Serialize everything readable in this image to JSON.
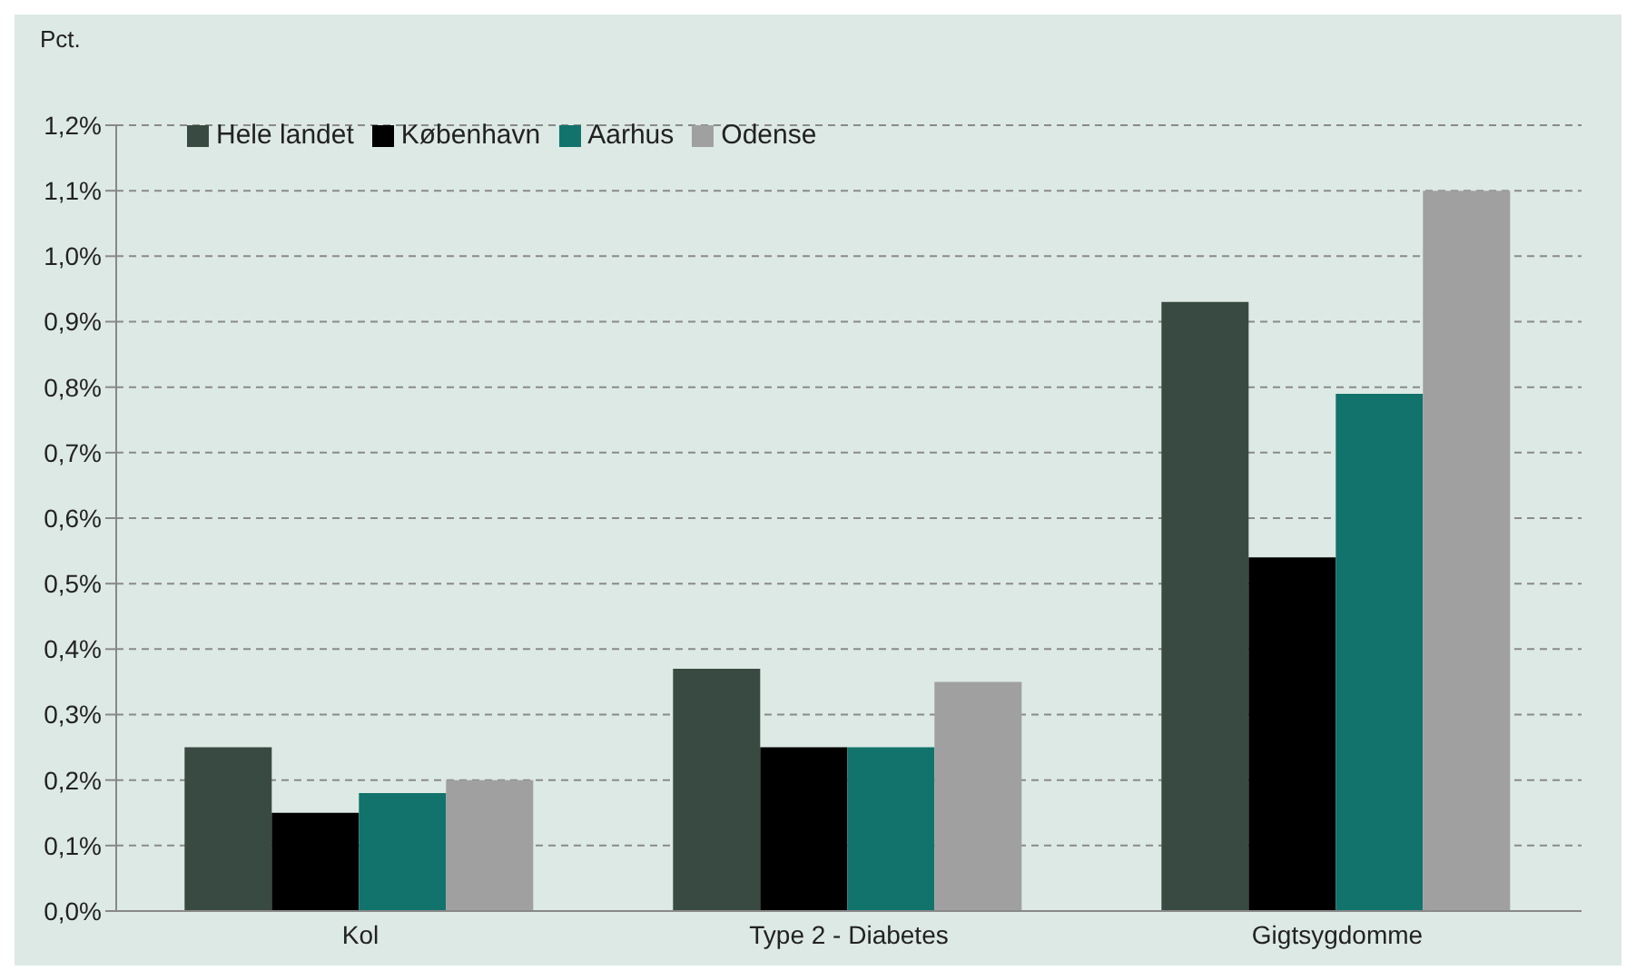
{
  "chart_data": {
    "type": "bar",
    "ylabel": "Pct.",
    "categories": [
      "Kol",
      "Type 2 - Diabetes",
      "Gigtsygdomme"
    ],
    "series": [
      {
        "name": "Hele landet",
        "color": "#394a42",
        "values": [
          0.25,
          0.37,
          0.93
        ]
      },
      {
        "name": "København",
        "color": "#000000",
        "values": [
          0.15,
          0.25,
          0.54
        ]
      },
      {
        "name": "Aarhus",
        "color": "#11736b",
        "values": [
          0.18,
          0.25,
          0.79
        ]
      },
      {
        "name": "Odense",
        "color": "#a0a0a0",
        "values": [
          0.2,
          0.35,
          1.1
        ]
      }
    ],
    "ylim": [
      0,
      1.2
    ],
    "yticks": [
      {
        "value": 0,
        "label": "0,0%"
      },
      {
        "value": 0.1,
        "label": "0,1%"
      },
      {
        "value": 0.2,
        "label": "0,2%"
      },
      {
        "value": 0.3,
        "label": "0,3%"
      },
      {
        "value": 0.4,
        "label": "0,4%"
      },
      {
        "value": 0.5,
        "label": "0,5%"
      },
      {
        "value": 0.6,
        "label": "0,6%"
      },
      {
        "value": 0.7,
        "label": "0,7%"
      },
      {
        "value": 0.8,
        "label": "0,8%"
      },
      {
        "value": 0.9,
        "label": "0,9%"
      },
      {
        "value": 1.0,
        "label": "1,0%"
      },
      {
        "value": 1.1,
        "label": "1,1%"
      },
      {
        "value": 1.2,
        "label": "1,2%"
      }
    ],
    "grid": "y",
    "legend": "top left"
  }
}
